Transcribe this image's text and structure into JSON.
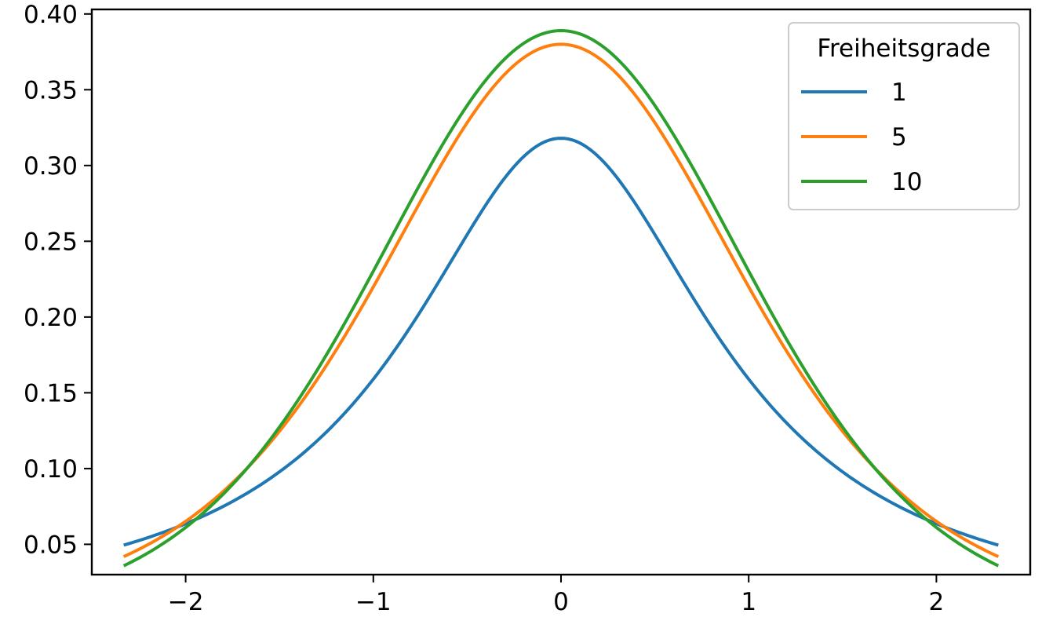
{
  "chart_data": {
    "type": "line",
    "title": "",
    "xlabel": "",
    "ylabel": "",
    "xlim": [
      -2.5,
      2.5
    ],
    "ylim": [
      0.03,
      0.403
    ],
    "x_ticks": [
      -2,
      -1,
      0,
      1,
      2
    ],
    "x_tick_labels": [
      "−2",
      "−1",
      "0",
      "1",
      "2"
    ],
    "y_ticks": [
      0.05,
      0.1,
      0.15,
      0.2,
      0.25,
      0.3,
      0.35,
      0.4
    ],
    "y_tick_labels": [
      "0.05",
      "0.10",
      "0.15",
      "0.20",
      "0.25",
      "0.30",
      "0.35",
      "0.40"
    ],
    "x_range": [
      -2.33,
      2.33
    ],
    "grid": false,
    "legend": {
      "title": "Freiheitsgrade",
      "placement": "upper-right"
    },
    "series": [
      {
        "name": "1",
        "color": "#1f77b4",
        "x": [
          -2.33,
          -2.0,
          -1.5,
          -1.0,
          -0.5,
          0.0,
          0.5,
          1.0,
          1.5,
          2.0,
          2.33
        ],
        "y": [
          0.05,
          0.064,
          0.098,
          0.159,
          0.255,
          0.318,
          0.255,
          0.159,
          0.098,
          0.064,
          0.05
        ]
      },
      {
        "name": "5",
        "color": "#ff7f0e",
        "x": [
          -2.33,
          -2.0,
          -1.5,
          -1.0,
          -0.5,
          0.0,
          0.5,
          1.0,
          1.5,
          2.0,
          2.33
        ],
        "y": [
          0.042,
          0.065,
          0.124,
          0.22,
          0.322,
          0.38,
          0.322,
          0.22,
          0.124,
          0.065,
          0.042
        ]
      },
      {
        "name": "10",
        "color": "#2ca02c",
        "x": [
          -2.33,
          -2.0,
          -1.5,
          -1.0,
          -0.5,
          0.0,
          0.5,
          1.0,
          1.5,
          2.0,
          2.33
        ],
        "y": [
          0.036,
          0.061,
          0.124,
          0.23,
          0.34,
          0.389,
          0.34,
          0.23,
          0.124,
          0.061,
          0.036
        ]
      }
    ]
  }
}
